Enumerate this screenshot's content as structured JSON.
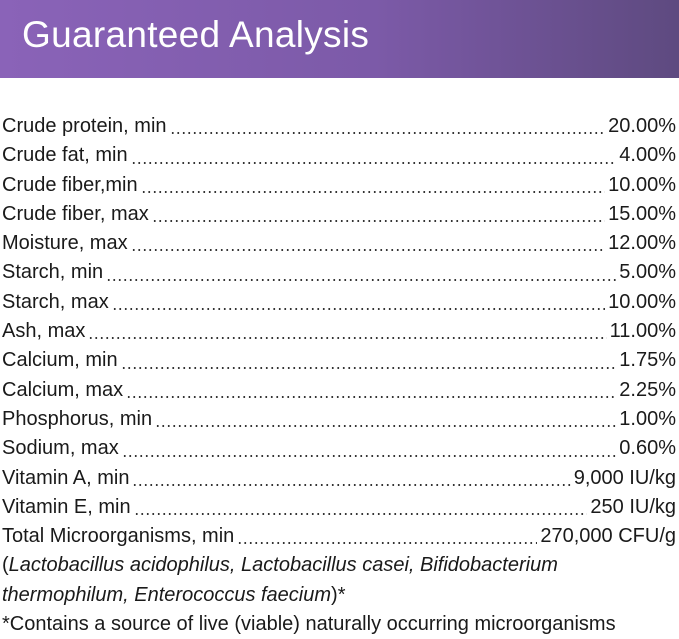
{
  "header": {
    "title": "Guaranteed Analysis"
  },
  "rows": [
    {
      "label": "Crude protein, min",
      "value": "20.00%"
    },
    {
      "label": "Crude fat, min",
      "value": "4.00%"
    },
    {
      "label": "Crude fiber,min",
      "value": "10.00%"
    },
    {
      "label": "Crude fiber, max",
      "value": "15.00%"
    },
    {
      "label": "Moisture, max",
      "value": "12.00%"
    },
    {
      "label": "Starch, min",
      "value": "5.00%"
    },
    {
      "label": "Starch, max",
      "value": "10.00%"
    },
    {
      "label": "Ash, max",
      "value": "11.00%"
    },
    {
      "label": "Calcium, min",
      "value": "1.75%"
    },
    {
      "label": "Calcium, max",
      "value": "2.25%"
    },
    {
      "label": "Phosphorus, min",
      "value": "1.00%"
    },
    {
      "label": "Sodium, max",
      "value": "0.60%"
    },
    {
      "label": "Vitamin A, min",
      "value": "9,000 IU/kg"
    },
    {
      "label": "Vitamin E, min",
      "value": "250 IU/kg"
    },
    {
      "label": "Total Microorganisms, min",
      "value": "270,000 CFU/g"
    }
  ],
  "note": {
    "open": "(",
    "species": "Lactobacillus acidophilus, Lactobacillus casei, Bifidobacterium thermophilum, Enterococcus faecium",
    "close": ")*"
  },
  "footnote": "*Contains a source of live (viable) naturally occurring microorganisms"
}
